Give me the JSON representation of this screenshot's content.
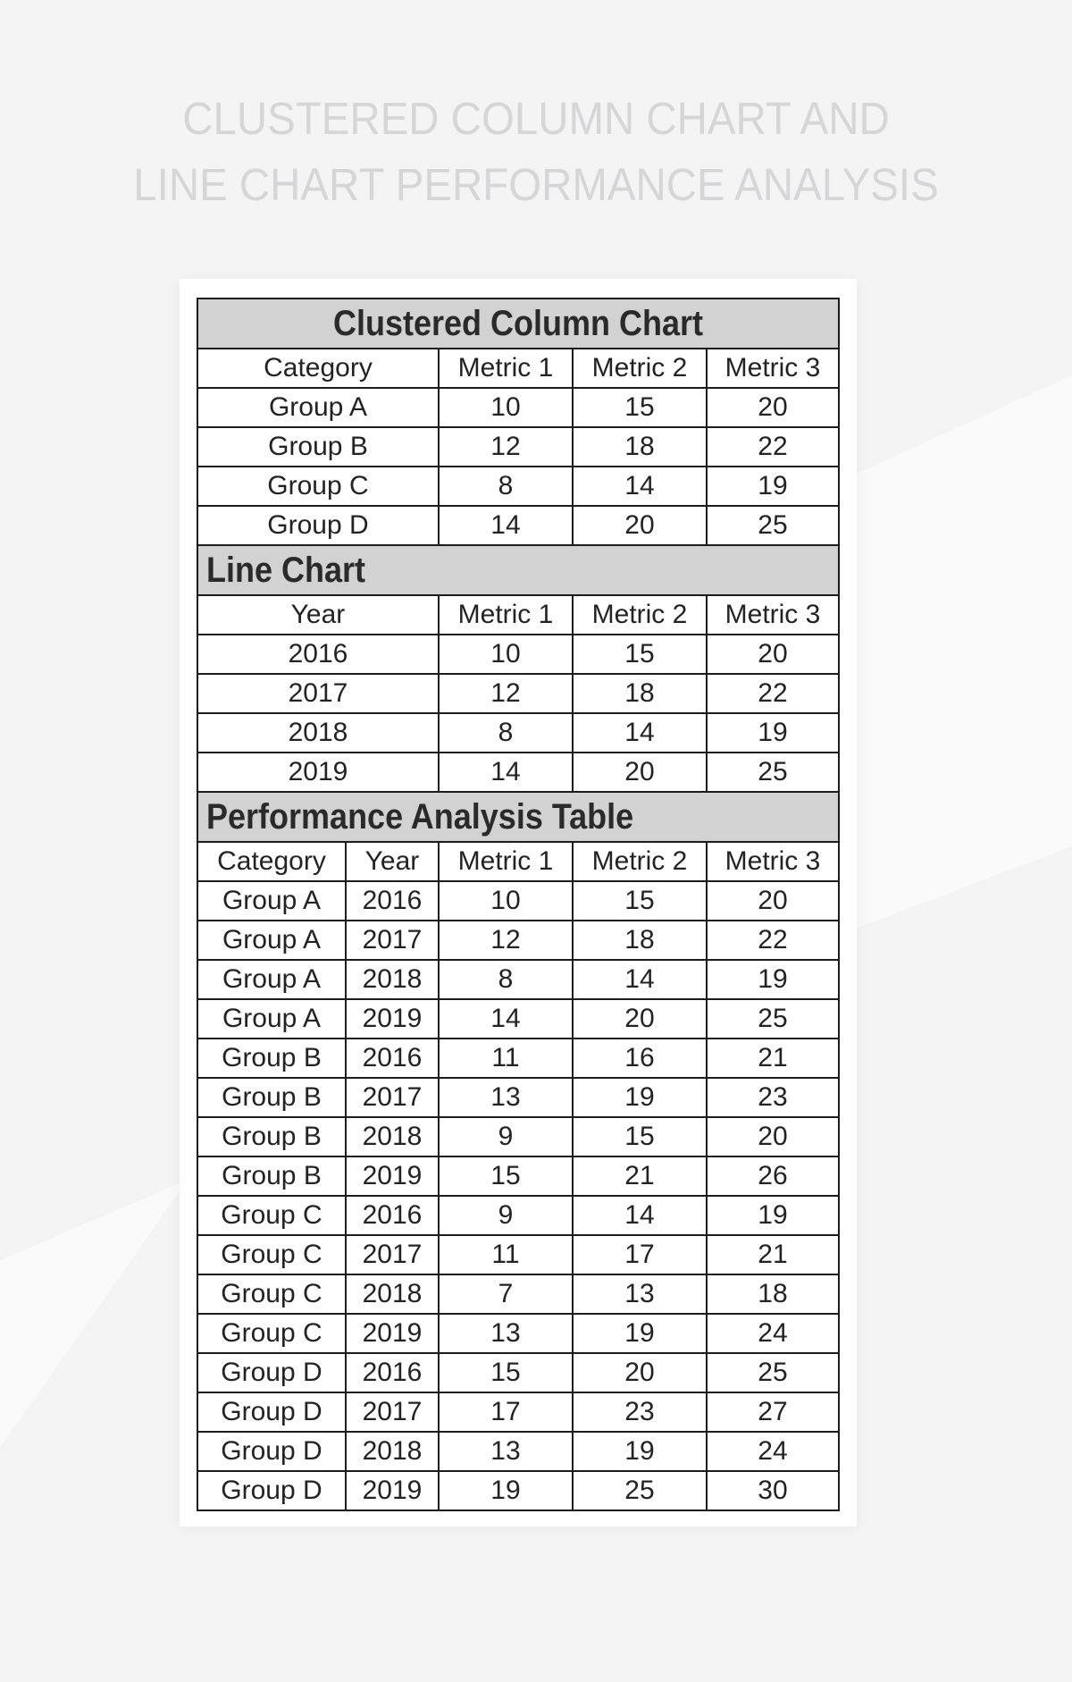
{
  "page_title": {
    "line1": "CLUSTERED COLUMN CHART AND",
    "line2": "LINE CHART PERFORMANCE ANALYSIS"
  },
  "colors": {
    "page_bg": "#f4f4f5",
    "panel_bg": "#ffffff",
    "section_header_bg": "#d2d2d2",
    "table_border": "#1c1c1c",
    "table_text": "#232323",
    "title_text": "#d6d6d8"
  },
  "chart_data": [
    {
      "type": "table",
      "title": "Clustered Column Chart",
      "title_align": "center",
      "first_col_span": 2,
      "columns": [
        "Category",
        "Metric 1",
        "Metric 2",
        "Metric 3"
      ],
      "rows": [
        [
          "Group A",
          "10",
          "15",
          "20"
        ],
        [
          "Group B",
          "12",
          "18",
          "22"
        ],
        [
          "Group C",
          "8",
          "14",
          "19"
        ],
        [
          "Group D",
          "14",
          "20",
          "25"
        ]
      ]
    },
    {
      "type": "table",
      "title": "Line Chart",
      "title_align": "left",
      "first_col_span": 2,
      "columns": [
        "Year",
        "Metric 1",
        "Metric 2",
        "Metric 3"
      ],
      "rows": [
        [
          "2016",
          "10",
          "15",
          "20"
        ],
        [
          "2017",
          "12",
          "18",
          "22"
        ],
        [
          "2018",
          "8",
          "14",
          "19"
        ],
        [
          "2019",
          "14",
          "20",
          "25"
        ]
      ]
    },
    {
      "type": "table",
      "title": "Performance Analysis Table",
      "title_align": "left",
      "first_col_span": 1,
      "columns": [
        "Category",
        "Year",
        "Metric 1",
        "Metric 2",
        "Metric 3"
      ],
      "rows": [
        [
          "Group A",
          "2016",
          "10",
          "15",
          "20"
        ],
        [
          "Group A",
          "2017",
          "12",
          "18",
          "22"
        ],
        [
          "Group A",
          "2018",
          "8",
          "14",
          "19"
        ],
        [
          "Group A",
          "2019",
          "14",
          "20",
          "25"
        ],
        [
          "Group B",
          "2016",
          "11",
          "16",
          "21"
        ],
        [
          "Group B",
          "2017",
          "13",
          "19",
          "23"
        ],
        [
          "Group B",
          "2018",
          "9",
          "15",
          "20"
        ],
        [
          "Group B",
          "2019",
          "15",
          "21",
          "26"
        ],
        [
          "Group C",
          "2016",
          "9",
          "14",
          "19"
        ],
        [
          "Group C",
          "2017",
          "11",
          "17",
          "21"
        ],
        [
          "Group C",
          "2018",
          "7",
          "13",
          "18"
        ],
        [
          "Group C",
          "2019",
          "13",
          "19",
          "24"
        ],
        [
          "Group D",
          "2016",
          "15",
          "20",
          "25"
        ],
        [
          "Group D",
          "2017",
          "17",
          "23",
          "27"
        ],
        [
          "Group D",
          "2018",
          "13",
          "19",
          "24"
        ],
        [
          "Group D",
          "2019",
          "19",
          "25",
          "30"
        ]
      ]
    }
  ]
}
